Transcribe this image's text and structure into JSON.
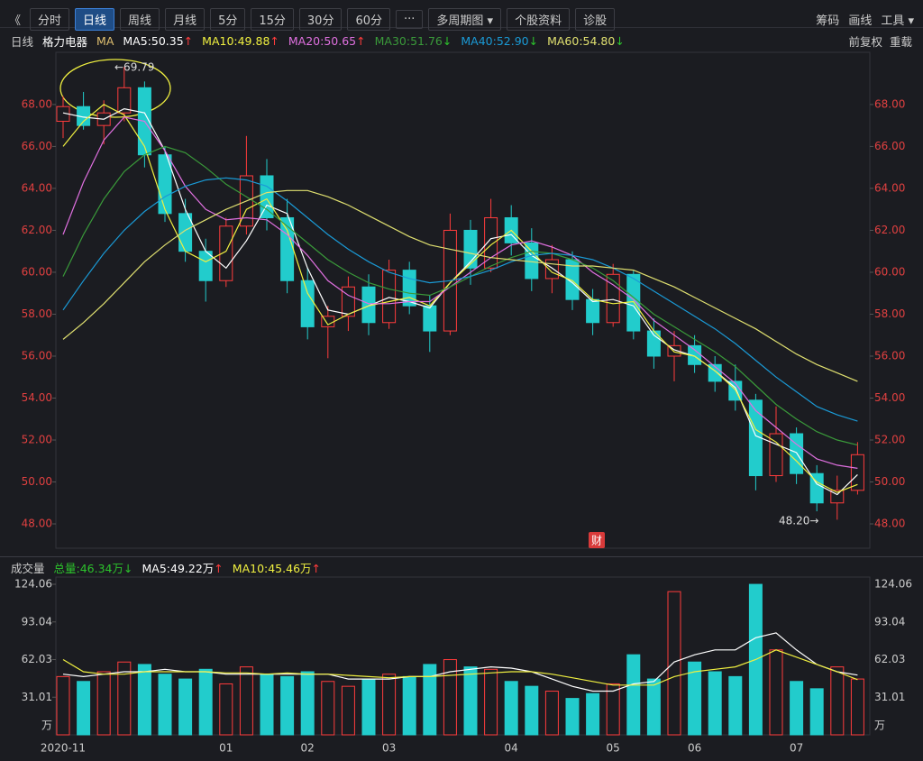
{
  "toolbar": {
    "left": [
      "《",
      "分时",
      "日线",
      "周线",
      "月线",
      "5分",
      "15分",
      "30分",
      "60分",
      "···",
      "多周期图 ▾",
      "个股资料",
      "诊股"
    ],
    "right": [
      "筹码",
      "画线",
      "工具 ▾"
    ]
  },
  "legend_right": [
    "前复权",
    "重载"
  ],
  "annotations": {
    "max": "←69.79",
    "min": "48.20→",
    "fin": "财"
  },
  "chart_data": [
    {
      "type": "candlestick",
      "label": "日线",
      "name": "格力电器",
      "indicator": "MA",
      "categories": [
        "2020-11",
        null,
        null,
        null,
        null,
        null,
        null,
        null,
        "01",
        null,
        null,
        null,
        "02",
        null,
        null,
        null,
        "03",
        null,
        null,
        null,
        null,
        null,
        "04",
        null,
        null,
        null,
        null,
        "05",
        null,
        null,
        null,
        "06",
        null,
        null,
        null,
        null,
        "07",
        null,
        null,
        null
      ],
      "open": [
        67.2,
        67.9,
        67.0,
        67.6,
        68.8,
        65.6,
        62.8,
        61.0,
        59.6,
        62.2,
        64.6,
        62.6,
        59.6,
        57.4,
        57.9,
        59.3,
        57.6,
        60.1,
        58.4,
        57.2,
        62.0,
        60.2,
        62.6,
        61.4,
        59.7,
        60.6,
        58.7,
        57.6,
        59.9,
        57.2,
        56.0,
        56.5,
        55.6,
        54.8,
        53.9,
        50.3,
        52.3,
        50.4,
        49.0,
        49.6
      ],
      "high": [
        68.4,
        68.6,
        68.2,
        69.79,
        69.1,
        66.0,
        63.5,
        61.6,
        62.6,
        66.5,
        65.4,
        63.5,
        60.2,
        58.4,
        59.8,
        59.9,
        60.6,
        60.5,
        58.9,
        62.8,
        62.5,
        63.5,
        63.2,
        62.1,
        61.3,
        61.0,
        59.2,
        60.4,
        60.1,
        57.8,
        57.2,
        57.0,
        56.0,
        55.6,
        54.2,
        53.6,
        52.6,
        50.8,
        50.3,
        51.9
      ],
      "low": [
        66.4,
        66.8,
        66.1,
        67.2,
        65.0,
        62.4,
        60.5,
        58.6,
        59.3,
        61.8,
        62.0,
        59.0,
        56.8,
        55.9,
        57.2,
        57.0,
        57.3,
        58.0,
        56.2,
        57.0,
        59.4,
        60.0,
        60.8,
        59.1,
        59.0,
        58.2,
        57.0,
        57.4,
        56.8,
        55.4,
        54.8,
        55.2,
        54.3,
        53.4,
        49.6,
        50.0,
        49.9,
        48.6,
        48.2,
        49.4
      ],
      "close": [
        67.9,
        67.0,
        67.6,
        68.8,
        65.6,
        62.8,
        61.0,
        59.6,
        62.2,
        64.6,
        62.6,
        59.6,
        57.4,
        57.9,
        59.3,
        57.6,
        60.1,
        58.4,
        57.2,
        62.0,
        60.2,
        62.6,
        61.4,
        59.7,
        60.6,
        58.7,
        57.6,
        59.9,
        57.2,
        56.0,
        56.5,
        55.6,
        54.8,
        53.9,
        50.3,
        52.3,
        50.4,
        49.0,
        49.6,
        51.3
      ],
      "up_color": "#ff3c3c",
      "down_color": "#22cccc",
      "ylim": [
        46.84,
        70.49
      ],
      "yticks": [
        {
          "value": 48,
          "label": "48.00"
        },
        {
          "value": 50,
          "label": "50.00"
        },
        {
          "value": 52,
          "label": "52.00"
        },
        {
          "value": 54,
          "label": "54.00"
        },
        {
          "value": 56,
          "label": "56.00"
        },
        {
          "value": 58,
          "label": "58.00"
        },
        {
          "value": 60,
          "label": "60.00"
        },
        {
          "value": 62,
          "label": "62.00"
        },
        {
          "value": 64,
          "label": "64.00"
        },
        {
          "value": 66,
          "label": "66.00"
        },
        {
          "value": 68,
          "label": "68.00"
        }
      ],
      "series": [
        {
          "name": "MA5:50.35",
          "trend": "↑",
          "trend_color": "#ff3c3c",
          "color": "#ffffff",
          "values": [
            67.6,
            67.4,
            67.3,
            67.8,
            67.6,
            65.8,
            63.0,
            61.0,
            60.2,
            61.5,
            63.2,
            62.8,
            60.2,
            58.2,
            58.0,
            58.4,
            58.8,
            58.6,
            58.3,
            59.5,
            60.5,
            61.6,
            61.8,
            60.8,
            60.2,
            59.5,
            58.6,
            58.7,
            58.4,
            57.0,
            56.3,
            56.0,
            55.3,
            54.5,
            52.2,
            51.8,
            51.4,
            49.9,
            49.4,
            50.35
          ]
        },
        {
          "name": "MA10:49.88",
          "trend": "↑",
          "trend_color": "#ff3c3c",
          "color": "#f0f040",
          "values": [
            66.0,
            67.2,
            68.0,
            67.5,
            66.0,
            63.0,
            61.0,
            60.5,
            61.0,
            63.0,
            63.5,
            62.0,
            59.0,
            57.5,
            58.0,
            58.4,
            58.6,
            58.8,
            58.4,
            59.5,
            60.4,
            61.3,
            62.0,
            61.0,
            60.0,
            59.6,
            58.7,
            58.5,
            58.6,
            57.2,
            56.2,
            56.0,
            55.3,
            54.4,
            52.5,
            51.9,
            51.0,
            50.0,
            49.5,
            49.88
          ]
        },
        {
          "name": "MA20:50.65",
          "trend": "↑",
          "trend_color": "#ff3c3c",
          "color": "#e070e0",
          "values": [
            61.8,
            64.3,
            66.3,
            67.4,
            67.2,
            65.8,
            64.1,
            63.0,
            62.5,
            62.6,
            62.5,
            61.8,
            60.8,
            59.6,
            58.9,
            58.5,
            58.5,
            58.6,
            58.6,
            59.3,
            60.0,
            60.7,
            61.3,
            61.5,
            61.2,
            60.8,
            60.0,
            59.4,
            58.7,
            57.7,
            57.0,
            56.3,
            55.5,
            54.7,
            53.4,
            52.6,
            51.8,
            51.1,
            50.8,
            50.65
          ]
        },
        {
          "name": "MA30:51.76",
          "trend": "↓",
          "trend_color": "#2cc22c",
          "color": "#3a9a3a",
          "values": [
            59.8,
            61.8,
            63.5,
            64.8,
            65.6,
            66.0,
            65.7,
            65.0,
            64.2,
            63.6,
            63.0,
            62.2,
            61.4,
            60.6,
            60.0,
            59.5,
            59.2,
            59.0,
            58.9,
            59.3,
            59.8,
            60.3,
            60.7,
            61.0,
            60.9,
            60.6,
            60.2,
            59.6,
            58.8,
            58.0,
            57.4,
            56.8,
            56.2,
            55.5,
            54.6,
            53.7,
            53.0,
            52.4,
            52.0,
            51.76
          ]
        },
        {
          "name": "MA40:52.90",
          "trend": "↓",
          "trend_color": "#2cc22c",
          "color": "#1a9ad6",
          "values": [
            58.2,
            59.6,
            60.9,
            62.0,
            62.9,
            63.6,
            64.1,
            64.4,
            64.5,
            64.4,
            64.1,
            63.4,
            62.6,
            61.8,
            61.1,
            60.5,
            60.0,
            59.7,
            59.5,
            59.6,
            59.8,
            60.1,
            60.5,
            60.8,
            60.9,
            60.8,
            60.6,
            60.2,
            59.7,
            59.1,
            58.5,
            57.9,
            57.3,
            56.6,
            55.8,
            55.0,
            54.3,
            53.6,
            53.2,
            52.9
          ]
        },
        {
          "name": "MA60:54.80",
          "trend": "↓",
          "trend_color": "#2cc22c",
          "color": "#e0e070",
          "values": [
            56.8,
            57.6,
            58.5,
            59.5,
            60.5,
            61.3,
            62.0,
            62.5,
            63.0,
            63.4,
            63.8,
            63.9,
            63.9,
            63.6,
            63.2,
            62.7,
            62.2,
            61.7,
            61.3,
            61.1,
            60.9,
            60.7,
            60.6,
            60.5,
            60.4,
            60.3,
            60.3,
            60.2,
            60.1,
            59.7,
            59.3,
            58.8,
            58.3,
            57.8,
            57.3,
            56.7,
            56.1,
            55.6,
            55.2,
            54.8
          ]
        }
      ]
    },
    {
      "type": "volume",
      "label": "成交量",
      "total": "总量:46.34万",
      "total_trend": "↓",
      "total_color": "#2cc22c",
      "total_trend_color": "#2cc22c",
      "values": [
        48,
        44,
        52,
        60,
        58,
        50,
        46,
        54,
        42,
        56,
        50,
        48,
        52,
        44,
        40,
        46,
        50,
        48,
        58,
        62,
        56,
        54,
        44,
        40,
        36,
        30,
        34,
        42,
        66,
        46,
        118,
        60,
        52,
        48,
        124,
        70,
        44,
        38,
        56,
        46
      ],
      "ylim": [
        0,
        130
      ],
      "yticks": [
        31.01,
        62.03,
        93.04,
        124.06
      ],
      "y_unit": "万",
      "series": [
        {
          "name": "MA5:49.22万",
          "trend": "↑",
          "trend_color": "#ff3c3c",
          "color": "#ffffff",
          "values": [
            50,
            48,
            50,
            52,
            52,
            54,
            52,
            52,
            50,
            50,
            50,
            50,
            50,
            50,
            46,
            46,
            46,
            48,
            48,
            52,
            54,
            56,
            55,
            52,
            46,
            40,
            36,
            36,
            42,
            44,
            60,
            66,
            70,
            70,
            80,
            84,
            70,
            58,
            52,
            49.22
          ]
        },
        {
          "name": "MA10:45.46万",
          "trend": "↑",
          "trend_color": "#ff3c3c",
          "color": "#f0f040",
          "values": [
            62,
            52,
            50,
            50,
            52,
            52,
            52,
            52,
            51,
            51,
            50,
            51,
            50,
            50,
            49,
            48,
            47,
            48,
            48,
            49,
            50,
            51,
            52,
            52,
            50,
            47,
            44,
            41,
            41,
            41,
            48,
            52,
            54,
            56,
            62,
            70,
            64,
            58,
            52,
            45.46
          ]
        }
      ]
    }
  ]
}
